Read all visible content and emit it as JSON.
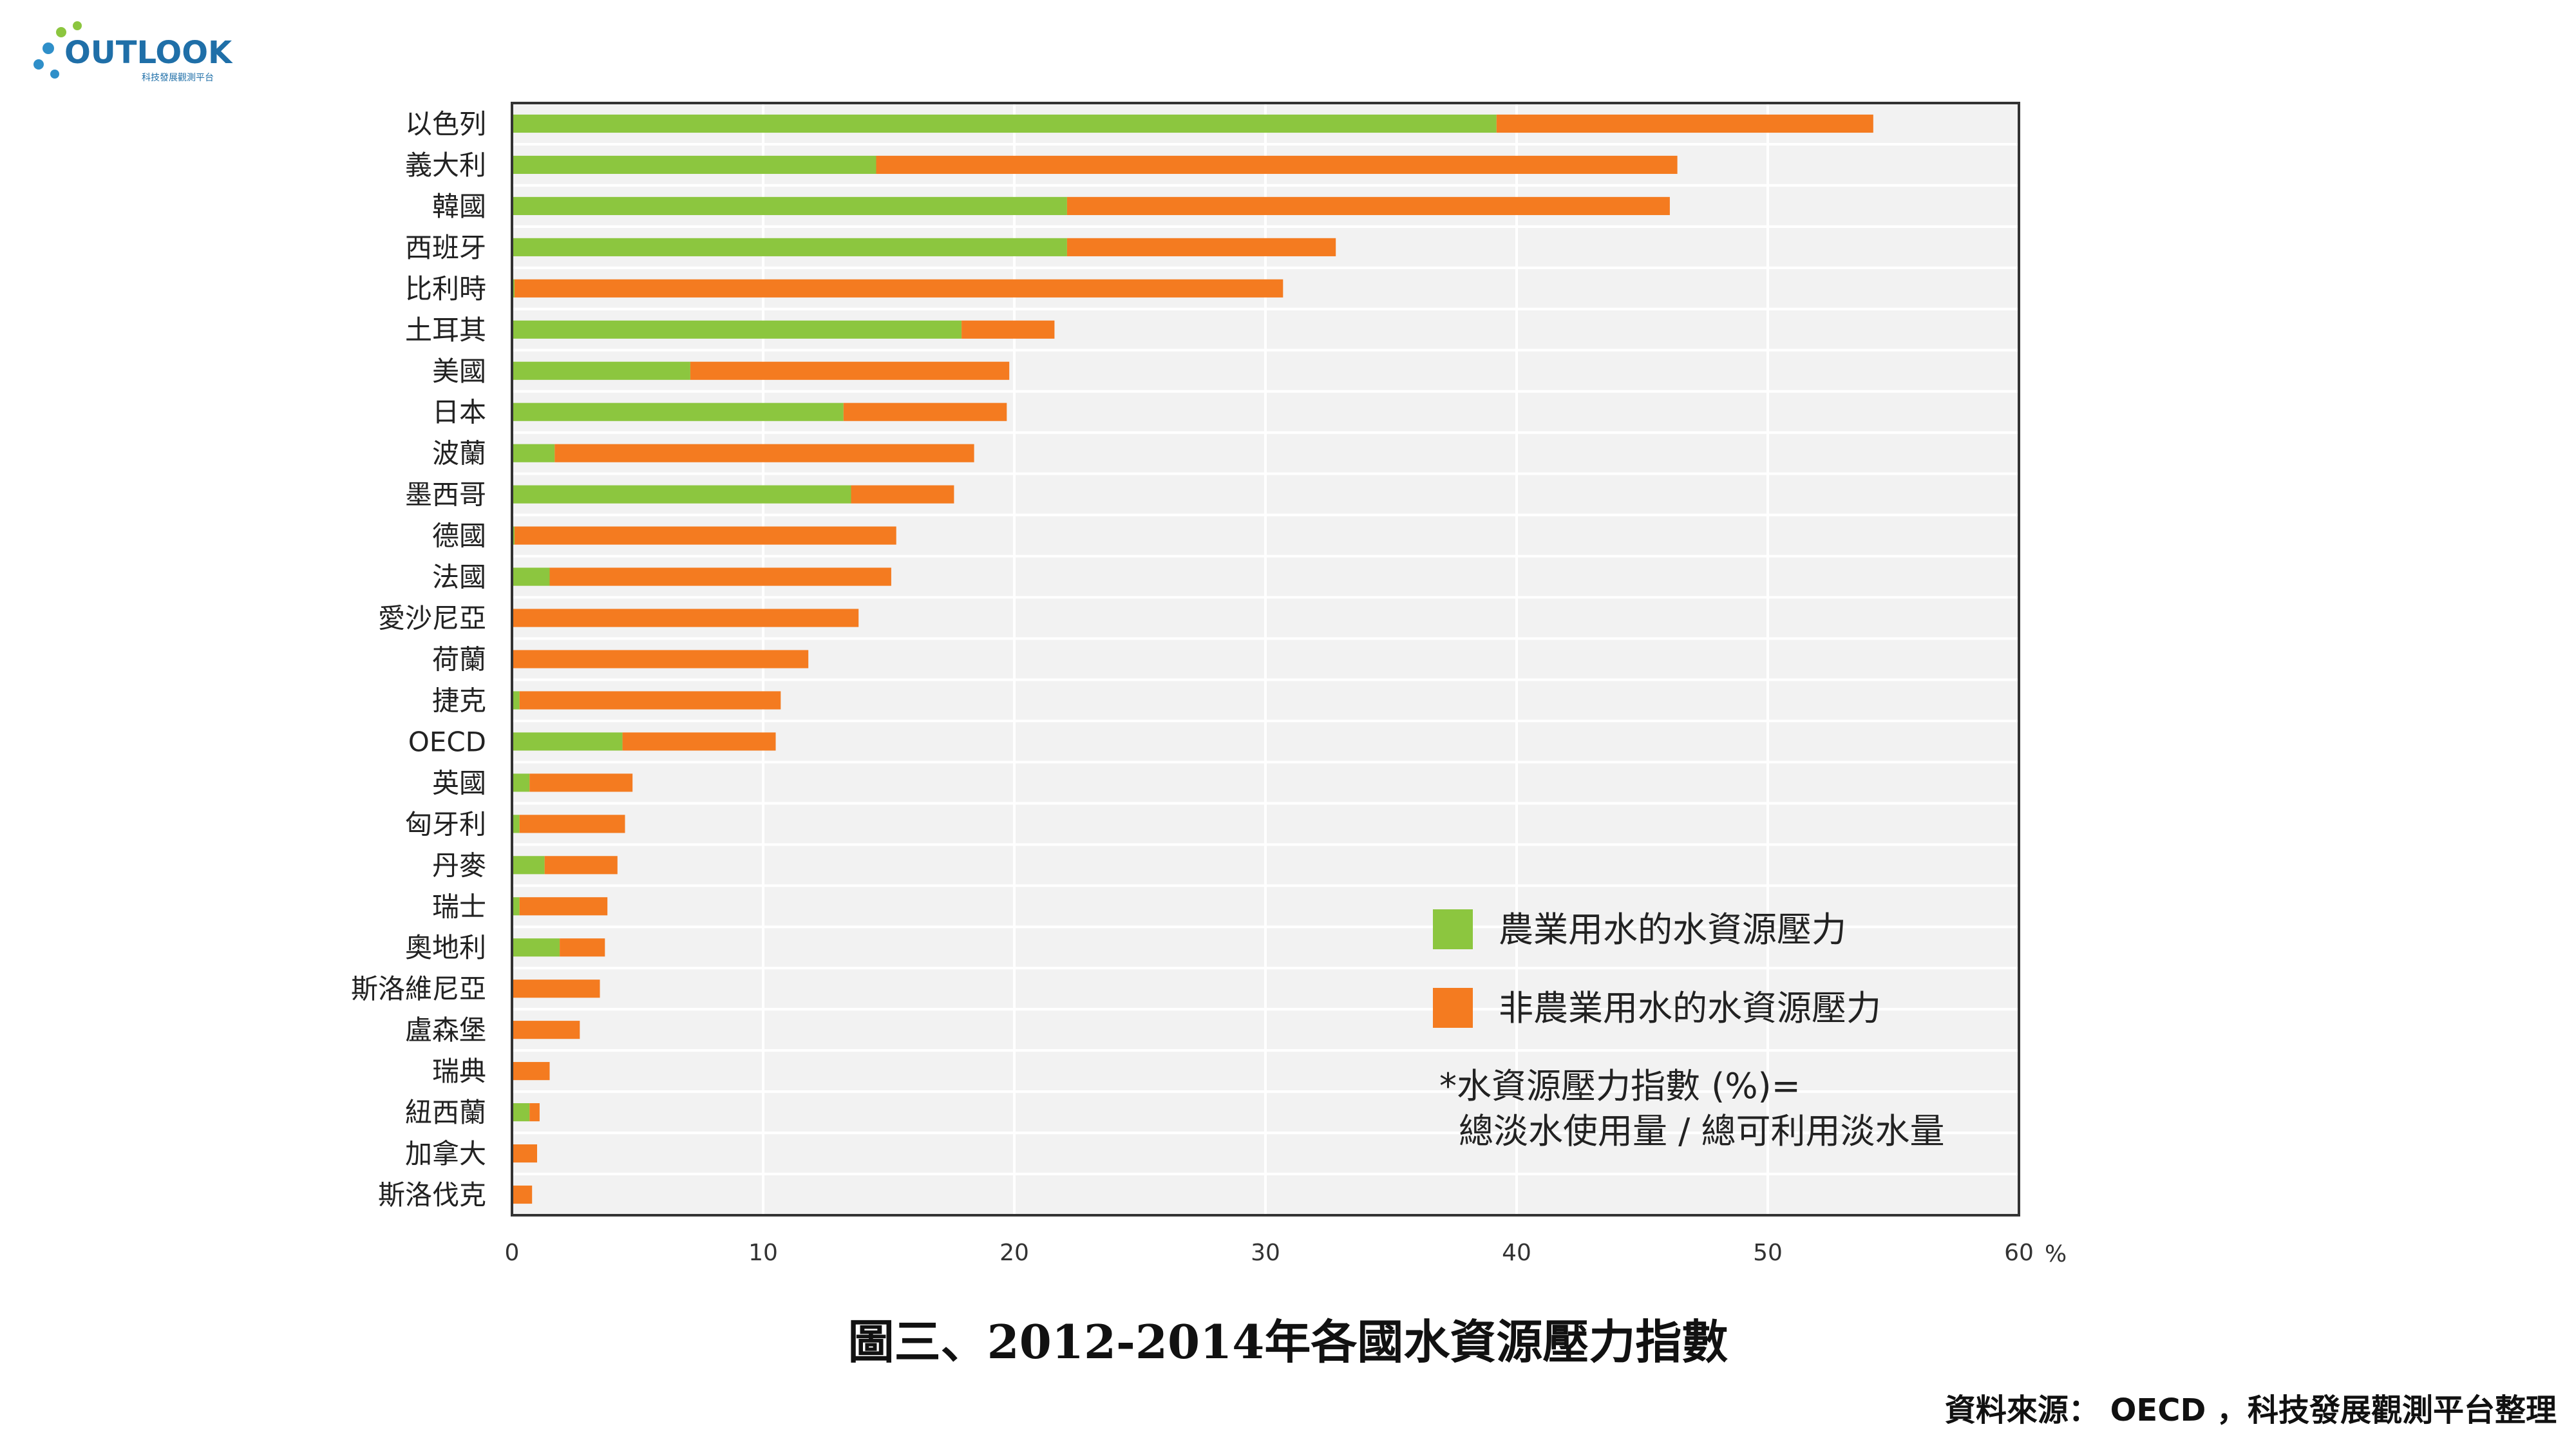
{
  "logo": {
    "text": "OUTLOOK",
    "subtext": "科技發展觀測平台"
  },
  "colors": {
    "agricultural": "#8cc63f",
    "non_agricultural": "#f47b20",
    "plot_bg": "#f2f2f2",
    "grid": "#ffffff"
  },
  "chart_data": {
    "type": "bar",
    "orientation": "horizontal",
    "stacked": true,
    "categories": [
      "以色列",
      "義大利",
      "韓國",
      "西班牙",
      "比利時",
      "土耳其",
      "美國",
      "日本",
      "波蘭",
      "墨西哥",
      "德國",
      "法國",
      "愛沙尼亞",
      "荷蘭",
      "捷克",
      "OECD",
      "英國",
      "匈牙利",
      "丹麥",
      "瑞士",
      "奧地利",
      "斯洛維尼亞",
      "盧森堡",
      "瑞典",
      "紐西蘭",
      "加拿大",
      "斯洛伐克"
    ],
    "series": [
      {
        "name": "農業用水的水資源壓力",
        "values": [
          39.2,
          14.5,
          22.1,
          22.1,
          0.1,
          17.9,
          7.1,
          13.2,
          1.7,
          13.5,
          0.1,
          1.5,
          0,
          0,
          0.3,
          4.4,
          0.7,
          0.3,
          1.3,
          0.3,
          1.9,
          0,
          0,
          0,
          0.7,
          0,
          0
        ]
      },
      {
        "name": "非農業用水的水資源壓力",
        "values": [
          15.0,
          31.9,
          24.0,
          10.7,
          30.6,
          3.7,
          12.7,
          6.5,
          16.7,
          4.1,
          15.2,
          13.6,
          13.8,
          11.8,
          10.4,
          6.1,
          4.1,
          4.2,
          2.9,
          3.5,
          1.8,
          3.5,
          2.7,
          1.5,
          0.4,
          1.0,
          0.8
        ]
      }
    ],
    "xlim": [
      0,
      60
    ],
    "x_ticks": [
      "0",
      "10",
      "20",
      "30",
      "40",
      "50",
      "60"
    ],
    "x_unit": "%",
    "legend_position": "bottom-right-inside"
  },
  "note": {
    "line1": "*水資源壓力指數 (%)=",
    "line2": "總淡水使用量 / 總可利用淡水量"
  },
  "caption": "圖三、2012-2014年各國水資源壓力指數",
  "source": "資料來源： OECD ，科技發展觀測平台整理"
}
